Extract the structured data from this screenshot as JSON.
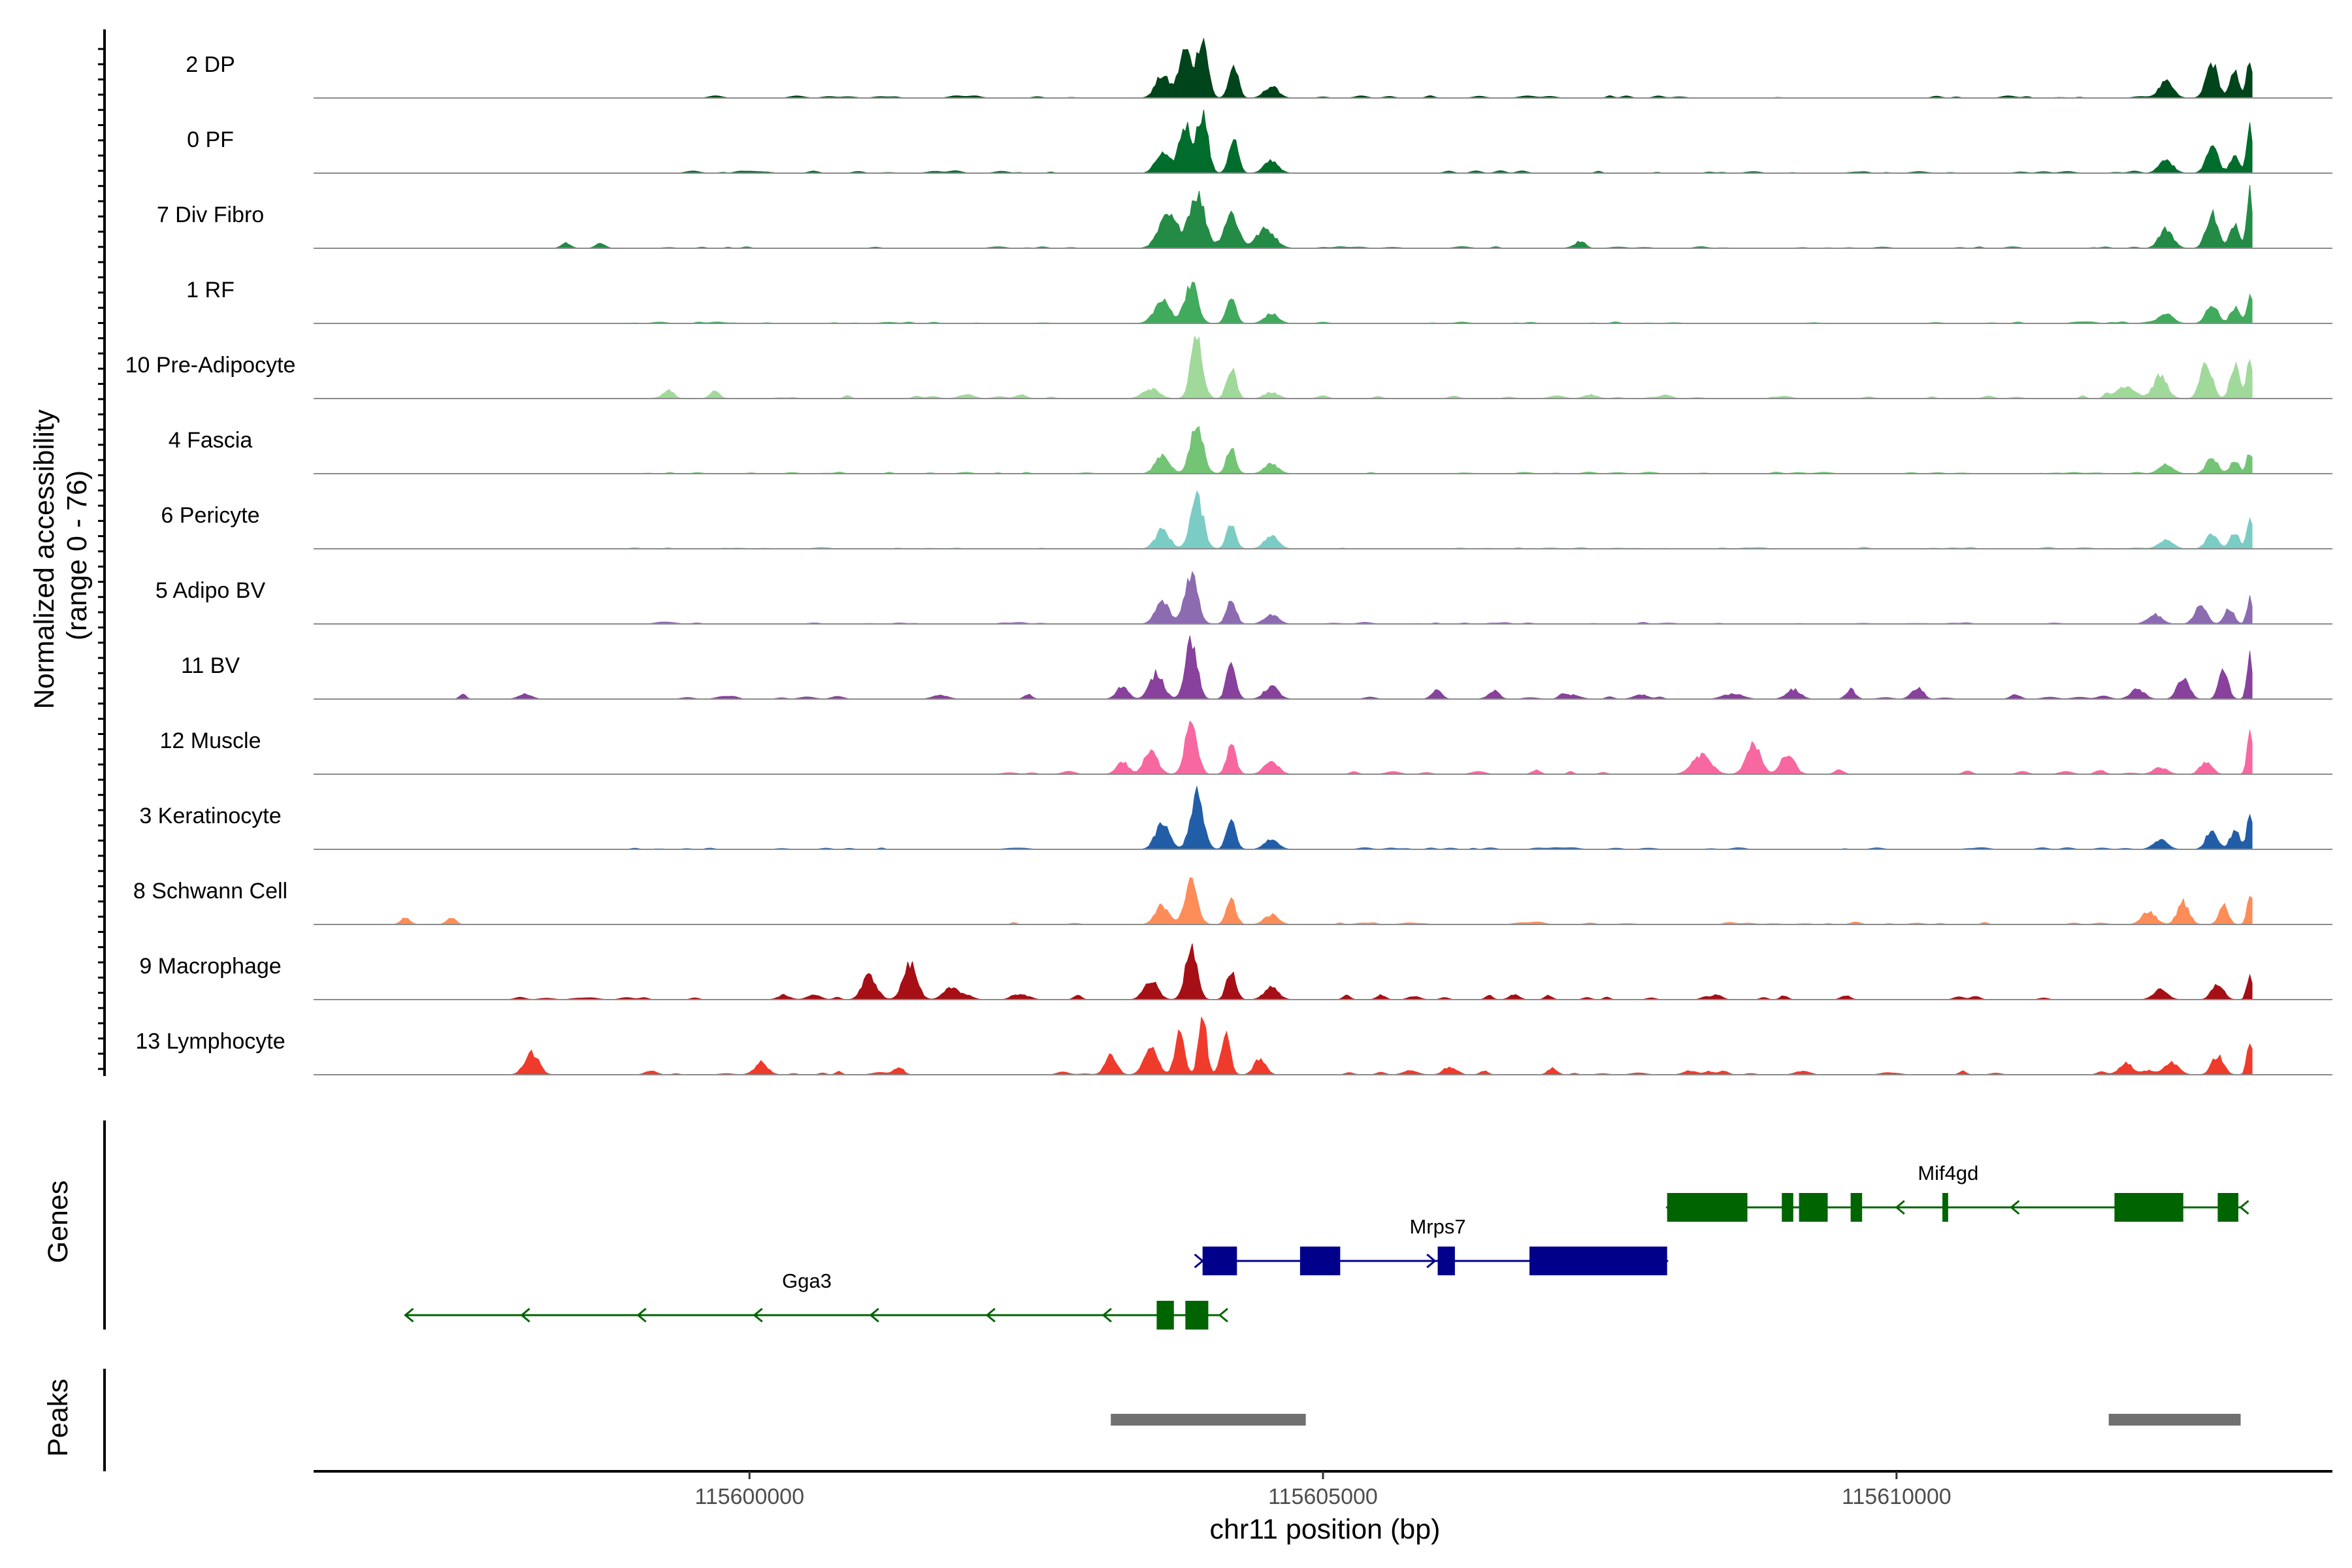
{
  "chart_data": {
    "type": "area",
    "title": "",
    "xlabel": "chr11 position (bp)",
    "ylabel": "Normalized accessibility",
    "ylabel_range": "(range 0 - 76)",
    "xlim": [
      115596200,
      115613800
    ],
    "xticks": [
      {
        "value": 115600000,
        "label": "115600000"
      },
      {
        "value": 115605000,
        "label": "115605000"
      },
      {
        "value": 115610000,
        "label": "115610000"
      }
    ],
    "panel_labels": {
      "genes": "Genes",
      "peaks": "Peaks"
    },
    "coverage_xrange": [
      115596200,
      115613100
    ],
    "tracks": [
      {
        "name": "2 DP",
        "color": "#00441b",
        "peaks": [
          [
            115603600,
            0.35,
            60
          ],
          [
            115603800,
            0.75,
            55
          ],
          [
            115603950,
            0.95,
            45
          ],
          [
            115604220,
            0.5,
            40
          ],
          [
            115604550,
            0.18,
            60
          ],
          [
            115612350,
            0.25,
            60
          ],
          [
            115612750,
            0.55,
            50
          ],
          [
            115612950,
            0.4,
            40
          ],
          [
            115613080,
            0.6,
            25
          ]
        ],
        "noise": [
          [
            115599000,
            115603000
          ],
          [
            115605000,
            115612200
          ]
        ],
        "noise_level": 0.03
      },
      {
        "name": "0 PF",
        "color": "#006d2c",
        "peaks": [
          [
            115603600,
            0.3,
            60
          ],
          [
            115603800,
            0.75,
            55
          ],
          [
            115603950,
            0.95,
            45
          ],
          [
            115604220,
            0.55,
            40
          ],
          [
            115604550,
            0.2,
            60
          ],
          [
            115612350,
            0.2,
            60
          ],
          [
            115612750,
            0.45,
            50
          ],
          [
            115612950,
            0.3,
            40
          ],
          [
            115613080,
            0.7,
            25
          ]
        ],
        "noise": [
          [
            115599000,
            115603000
          ],
          [
            115605000,
            115612200
          ]
        ],
        "noise_level": 0.03
      },
      {
        "name": "7 Div Fibro",
        "color": "#238b45",
        "peaks": [
          [
            115603650,
            0.5,
            80
          ],
          [
            115603900,
            0.85,
            70
          ],
          [
            115604200,
            0.55,
            60
          ],
          [
            115604500,
            0.3,
            80
          ],
          [
            115612350,
            0.3,
            60
          ],
          [
            115612750,
            0.55,
            50
          ],
          [
            115612950,
            0.4,
            40
          ],
          [
            115613080,
            0.95,
            25
          ],
          [
            115598400,
            0.08,
            40
          ],
          [
            115598700,
            0.08,
            40
          ],
          [
            115607250,
            0.1,
            40
          ]
        ],
        "noise": [
          [
            115599000,
            115603000
          ],
          [
            115605000,
            115612200
          ]
        ],
        "noise_level": 0.02
      },
      {
        "name": "1 RF",
        "color": "#41ab5d",
        "peaks": [
          [
            115603600,
            0.35,
            70
          ],
          [
            115603850,
            0.65,
            55
          ],
          [
            115604200,
            0.4,
            40
          ],
          [
            115604550,
            0.15,
            60
          ],
          [
            115612350,
            0.15,
            60
          ],
          [
            115612750,
            0.3,
            50
          ],
          [
            115612950,
            0.25,
            40
          ],
          [
            115613080,
            0.45,
            25
          ]
        ],
        "noise": [
          [
            115599000,
            115603000
          ],
          [
            115605000,
            115612200
          ]
        ],
        "noise_level": 0.02
      },
      {
        "name": "10 Pre-Adipocyte",
        "color": "#a1d99b",
        "peaks": [
          [
            115603500,
            0.15,
            70
          ],
          [
            115603900,
            0.95,
            50
          ],
          [
            115604200,
            0.5,
            40
          ],
          [
            115604550,
            0.1,
            60
          ],
          [
            115612000,
            0.2,
            80
          ],
          [
            115612300,
            0.35,
            60
          ],
          [
            115612700,
            0.55,
            50
          ],
          [
            115612950,
            0.5,
            40
          ],
          [
            115613080,
            0.65,
            25
          ],
          [
            115599300,
            0.12,
            40
          ],
          [
            115599700,
            0.1,
            40
          ]
        ],
        "noise": [
          [
            115599000,
            115603000
          ],
          [
            115605000,
            115612000
          ]
        ],
        "noise_level": 0.05
      },
      {
        "name": "4 Fascia",
        "color": "#74c476",
        "peaks": [
          [
            115603600,
            0.3,
            60
          ],
          [
            115603900,
            0.75,
            55
          ],
          [
            115604200,
            0.4,
            40
          ],
          [
            115604550,
            0.15,
            60
          ],
          [
            115612350,
            0.15,
            60
          ],
          [
            115612750,
            0.25,
            50
          ],
          [
            115612950,
            0.2,
            40
          ],
          [
            115613080,
            0.35,
            25
          ]
        ],
        "noise": [
          [
            115599000,
            115603000
          ],
          [
            115605000,
            115612200
          ]
        ],
        "noise_level": 0.02
      },
      {
        "name": "6 Pericyte",
        "color": "#7bccc4",
        "peaks": [
          [
            115603600,
            0.3,
            60
          ],
          [
            115603900,
            0.8,
            55
          ],
          [
            115604200,
            0.4,
            40
          ],
          [
            115604550,
            0.2,
            60
          ],
          [
            115612350,
            0.15,
            60
          ],
          [
            115612750,
            0.25,
            50
          ],
          [
            115612950,
            0.25,
            40
          ],
          [
            115613080,
            0.45,
            25
          ]
        ],
        "noise": [
          [
            115599000,
            115603000
          ],
          [
            115605000,
            115612200
          ]
        ],
        "noise_level": 0.02
      },
      {
        "name": "5 Adipo BV",
        "color": "#8c6bb1",
        "peaks": [
          [
            115603600,
            0.35,
            60
          ],
          [
            115603850,
            0.8,
            55
          ],
          [
            115604200,
            0.4,
            40
          ],
          [
            115604550,
            0.15,
            60
          ],
          [
            115612250,
            0.15,
            60
          ],
          [
            115612650,
            0.3,
            50
          ],
          [
            115612900,
            0.25,
            40
          ],
          [
            115613080,
            0.4,
            25
          ]
        ],
        "noise": [
          [
            115599000,
            115603000
          ],
          [
            115605000,
            115612200
          ]
        ],
        "noise_level": 0.02
      },
      {
        "name": "11 BV",
        "color": "#88419d",
        "peaks": [
          [
            115603250,
            0.2,
            50
          ],
          [
            115603550,
            0.4,
            60
          ],
          [
            115603850,
            0.95,
            50
          ],
          [
            115604200,
            0.55,
            40
          ],
          [
            115604550,
            0.2,
            60
          ],
          [
            115612100,
            0.15,
            60
          ],
          [
            115612500,
            0.35,
            50
          ],
          [
            115612850,
            0.45,
            40
          ],
          [
            115613080,
            0.65,
            25
          ],
          [
            115606000,
            0.12,
            40
          ],
          [
            115606500,
            0.12,
            40
          ],
          [
            115609100,
            0.15,
            60
          ],
          [
            115609600,
            0.15,
            40
          ],
          [
            115610200,
            0.15,
            40
          ]
        ],
        "noise": [
          [
            115597500,
            115603000
          ],
          [
            115605000,
            115612000
          ]
        ],
        "noise_level": 0.06
      },
      {
        "name": "12 Muscle",
        "color": "#f768a1",
        "peaks": [
          [
            115603250,
            0.2,
            50
          ],
          [
            115603500,
            0.35,
            60
          ],
          [
            115603850,
            0.9,
            50
          ],
          [
            115604200,
            0.45,
            40
          ],
          [
            115604550,
            0.2,
            60
          ],
          [
            115608300,
            0.3,
            80
          ],
          [
            115608750,
            0.5,
            60
          ],
          [
            115609050,
            0.3,
            60
          ],
          [
            115612300,
            0.1,
            60
          ],
          [
            115612700,
            0.2,
            50
          ],
          [
            115613080,
            0.6,
            25
          ]
        ],
        "noise": [
          [
            115602100,
            115603000
          ],
          [
            115605000,
            115607500
          ],
          [
            115609500,
            115612200
          ]
        ],
        "noise_level": 0.05
      },
      {
        "name": "3 Keratinocyte",
        "color": "#225ea8",
        "peaks": [
          [
            115603600,
            0.4,
            60
          ],
          [
            115603900,
            0.85,
            55
          ],
          [
            115604200,
            0.45,
            40
          ],
          [
            115604550,
            0.15,
            60
          ],
          [
            115612300,
            0.15,
            60
          ],
          [
            115612750,
            0.3,
            50
          ],
          [
            115612950,
            0.3,
            40
          ],
          [
            115613080,
            0.6,
            25
          ]
        ],
        "noise": [
          [
            115599000,
            115603000
          ],
          [
            115605000,
            115612200
          ]
        ],
        "noise_level": 0.02
      },
      {
        "name": "8 Schwann Cell",
        "color": "#fc8d59",
        "peaks": [
          [
            115603600,
            0.3,
            60
          ],
          [
            115603850,
            0.65,
            55
          ],
          [
            115604200,
            0.4,
            40
          ],
          [
            115604550,
            0.15,
            60
          ],
          [
            115612200,
            0.2,
            60
          ],
          [
            115612500,
            0.35,
            50
          ],
          [
            115612850,
            0.3,
            40
          ],
          [
            115613080,
            0.5,
            25
          ],
          [
            115597000,
            0.1,
            40
          ],
          [
            115597400,
            0.1,
            40
          ]
        ],
        "noise": [
          [
            115602200,
            115603000
          ],
          [
            115605000,
            115612000
          ]
        ],
        "noise_level": 0.03
      },
      {
        "name": "9 Macrophage",
        "color": "#a50f15",
        "peaks": [
          [
            115603500,
            0.3,
            60
          ],
          [
            115603850,
            0.8,
            50
          ],
          [
            115604200,
            0.45,
            40
          ],
          [
            115604550,
            0.2,
            60
          ],
          [
            115601050,
            0.35,
            60
          ],
          [
            115601400,
            0.55,
            60
          ],
          [
            115601750,
            0.2,
            60
          ],
          [
            115612300,
            0.15,
            60
          ],
          [
            115612800,
            0.25,
            50
          ],
          [
            115613080,
            0.4,
            25
          ]
        ],
        "noise": [
          [
            115598000,
            115603000
          ],
          [
            115605000,
            115612200
          ]
        ],
        "noise_level": 0.06
      },
      {
        "name": "13 Lymphocyte",
        "color": "#ef3b2c",
        "peaks": [
          [
            115603150,
            0.3,
            50
          ],
          [
            115603500,
            0.4,
            60
          ],
          [
            115603750,
            0.7,
            40
          ],
          [
            115603950,
            0.9,
            35
          ],
          [
            115604150,
            0.6,
            40
          ],
          [
            115604450,
            0.25,
            50
          ],
          [
            115598100,
            0.35,
            60
          ],
          [
            115600100,
            0.15,
            60
          ],
          [
            115601300,
            0.12,
            40
          ],
          [
            115606100,
            0.12,
            50
          ],
          [
            115607000,
            0.1,
            40
          ],
          [
            115612000,
            0.15,
            60
          ],
          [
            115612400,
            0.2,
            60
          ],
          [
            115612800,
            0.3,
            50
          ],
          [
            115613080,
            0.55,
            25
          ]
        ],
        "noise": [
          [
            115597800,
            115603000
          ],
          [
            115605000,
            115612200
          ]
        ],
        "noise_level": 0.05
      }
    ],
    "genes": [
      {
        "name": "Gga3",
        "strand": "-",
        "color": "#006400",
        "start": 115597000,
        "end": 115604100,
        "row": 2,
        "label_pos": 115600500,
        "exons": [
          [
            115603550,
            115603700
          ],
          [
            115603800,
            115604000
          ]
        ]
      },
      {
        "name": "Mrps7",
        "strand": "+",
        "color": "#00008b",
        "start": 115603950,
        "end": 115608000,
        "row": 1,
        "label_pos": 115606000,
        "exons": [
          [
            115603950,
            115604250
          ],
          [
            115604800,
            115605150
          ],
          [
            115606000,
            115606150
          ],
          [
            115606800,
            115608000
          ]
        ]
      },
      {
        "name": "Mif4gd",
        "strand": "-",
        "color": "#006400",
        "start": 115608000,
        "end": 115613000,
        "row": 0,
        "label_pos": 115610450,
        "exons": [
          [
            115608000,
            115608700
          ],
          [
            115609000,
            115609100
          ],
          [
            115609150,
            115609400
          ],
          [
            115609600,
            115609700
          ],
          [
            115610400,
            115610450
          ],
          [
            115611900,
            115612500
          ],
          [
            115612800,
            115612980
          ]
        ]
      }
    ],
    "peaks": [
      [
        115603150,
        115604850
      ],
      [
        115611850,
        115613000
      ]
    ]
  }
}
